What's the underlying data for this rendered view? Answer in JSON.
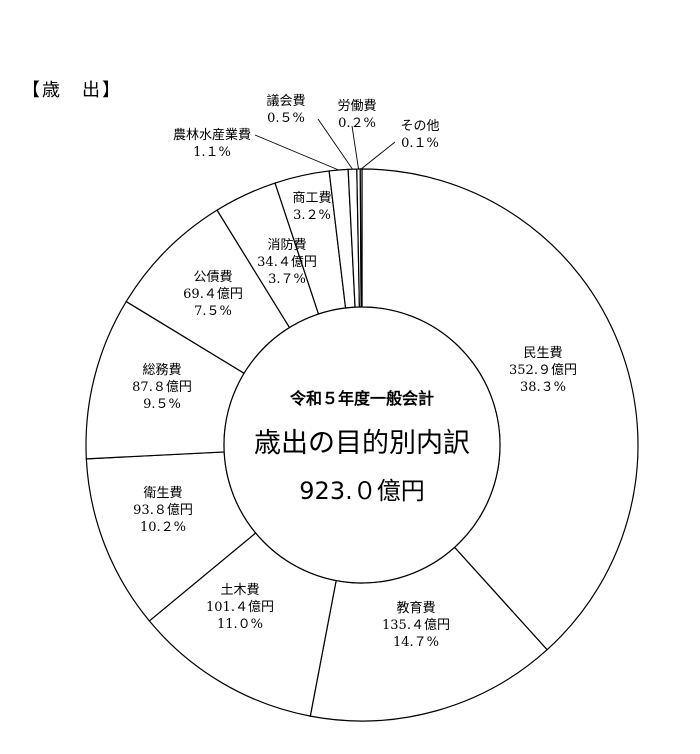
{
  "heading": "【歳　出】",
  "center": {
    "subtitle": "令和５年度一般会計",
    "title": "歳出の目的別内訳",
    "total": "923.０億円"
  },
  "chart_data": {
    "type": "pie",
    "title": "歳出の目的別内訳",
    "unit": "億円",
    "total": 923.0,
    "slices": [
      {
        "name": "民生費",
        "amount": "352.９億円",
        "percent": "38.３%",
        "value": 38.3
      },
      {
        "name": "教育費",
        "amount": "135.４億円",
        "percent": "14.７%",
        "value": 14.7
      },
      {
        "name": "土木費",
        "amount": "101.４億円",
        "percent": "11.０%",
        "value": 11.0
      },
      {
        "name": "衛生費",
        "amount": "93.８億円",
        "percent": "10.２%",
        "value": 10.2
      },
      {
        "name": "総務費",
        "amount": "87.８億円",
        "percent": "9.５%",
        "value": 9.5
      },
      {
        "name": "公債費",
        "amount": "69.４億円",
        "percent": "7.５%",
        "value": 7.5
      },
      {
        "name": "消防費",
        "amount": "34.４億円",
        "percent": "3.７%",
        "value": 3.7
      },
      {
        "name": "商工費",
        "amount": "",
        "percent": "3.２%",
        "value": 3.2
      },
      {
        "name": "農林水産業費",
        "amount": "",
        "percent": "1.１%",
        "value": 1.1
      },
      {
        "name": "議会費",
        "amount": "",
        "percent": "0.５%",
        "value": 0.5
      },
      {
        "name": "労働費",
        "amount": "",
        "percent": "0.２%",
        "value": 0.2
      },
      {
        "name": "その他",
        "amount": "",
        "percent": "0.１%",
        "value": 0.1
      }
    ],
    "legend": "none"
  }
}
